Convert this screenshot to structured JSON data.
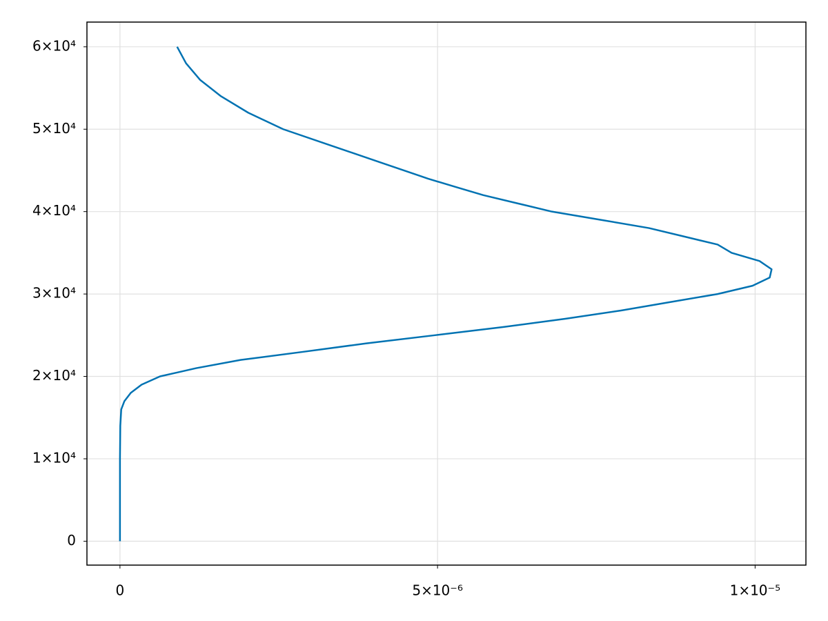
{
  "chart_data": {
    "type": "line",
    "x": [
      0,
      0,
      5e-09,
      2e-08,
      7e-08,
      1.7e-07,
      3.4e-07,
      6.3e-07,
      1.2e-06,
      1.9e-06,
      2.9e-06,
      3.87e-06,
      4.96e-06,
      6.04e-06,
      7.02e-06,
      7.89e-06,
      8.65e-06,
      9.41e-06,
      9.96e-06,
      1.023e-05,
      1.026e-05,
      1.007e-05,
      9.63e-06,
      9.41e-06,
      8.87e-06,
      8.33e-06,
      7.57e-06,
      6.8e-06,
      6.26e-06,
      5.72e-06,
      5.28e-06,
      4.85e-06,
      4.09e-06,
      3.33e-06,
      2.57e-06,
      2.02e-06,
      1.59e-06,
      1.26e-06,
      1.04e-06,
      9e-07
    ],
    "series": [
      {
        "color": "#0072b2",
        "values": [
          0,
          10000,
          14000,
          16000,
          17000,
          18000,
          19000,
          20000,
          21000,
          22000,
          23000,
          24000,
          25000,
          26000,
          27000,
          28000,
          29000,
          30000,
          31000,
          32000,
          33000,
          34000,
          35000,
          36000,
          37000,
          38000,
          39000,
          40000,
          41000,
          42000,
          43000,
          44000,
          46000,
          48000,
          50000,
          52000,
          54000,
          56000,
          58000,
          60000
        ]
      }
    ],
    "xlim": [
      -5.2e-07,
      1.08e-05
    ],
    "xticks": [
      0,
      {
        "value": 5e-06,
        "label": "5×10⁻⁶"
      },
      {
        "value": 1e-05,
        "label": "1×10⁻⁵"
      }
    ],
    "ylim": [
      -2900,
      63000
    ],
    "yticks": [
      0,
      {
        "value": 10000,
        "label": "1×10⁴"
      },
      {
        "value": 20000,
        "label": "2×10⁴"
      },
      {
        "value": 30000,
        "label": "3×10⁴"
      },
      {
        "value": 40000,
        "label": "4×10⁴"
      },
      {
        "value": 50000,
        "label": "5×10⁴"
      },
      {
        "value": 60000,
        "label": "6×10⁴"
      }
    ],
    "grid": true
  }
}
